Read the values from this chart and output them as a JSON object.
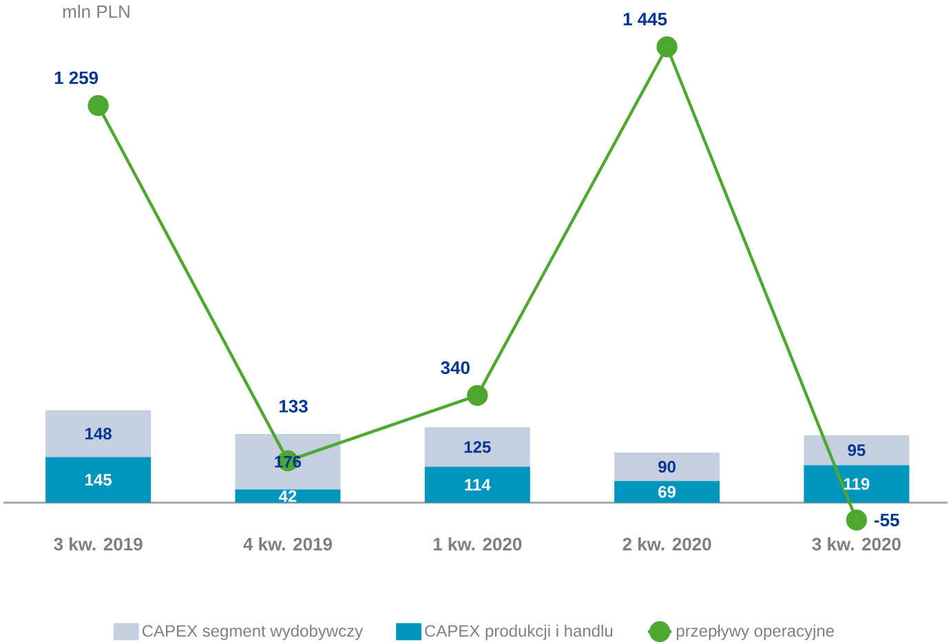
{
  "chart_data": {
    "type": "bar",
    "stacked": true,
    "ylabel": "mln PLN",
    "data_labels": true,
    "legend": "bottom",
    "marker": "circle",
    "categories": [
      "3 kw. 2019",
      "4 kw. 2019",
      "1 kw. 2020",
      "2 kw. 2020",
      "3 kw. 2020"
    ],
    "series": [
      {
        "name": "CAPEX produkcji i handlu",
        "color": "#0095bb",
        "values": [
          145,
          42,
          114,
          69,
          119
        ]
      },
      {
        "name": "CAPEX segment wydobywczy",
        "color": "#c5cfe0",
        "values": [
          148,
          176,
          125,
          90,
          95
        ]
      },
      {
        "name": "przepływy operacyjne",
        "type": "line",
        "color": "#4ea72e",
        "values": [
          1259,
          133,
          340,
          1445,
          -55
        ],
        "value_labels": [
          "1 259",
          "133",
          "340",
          "1 445",
          "-55"
        ]
      }
    ]
  }
}
